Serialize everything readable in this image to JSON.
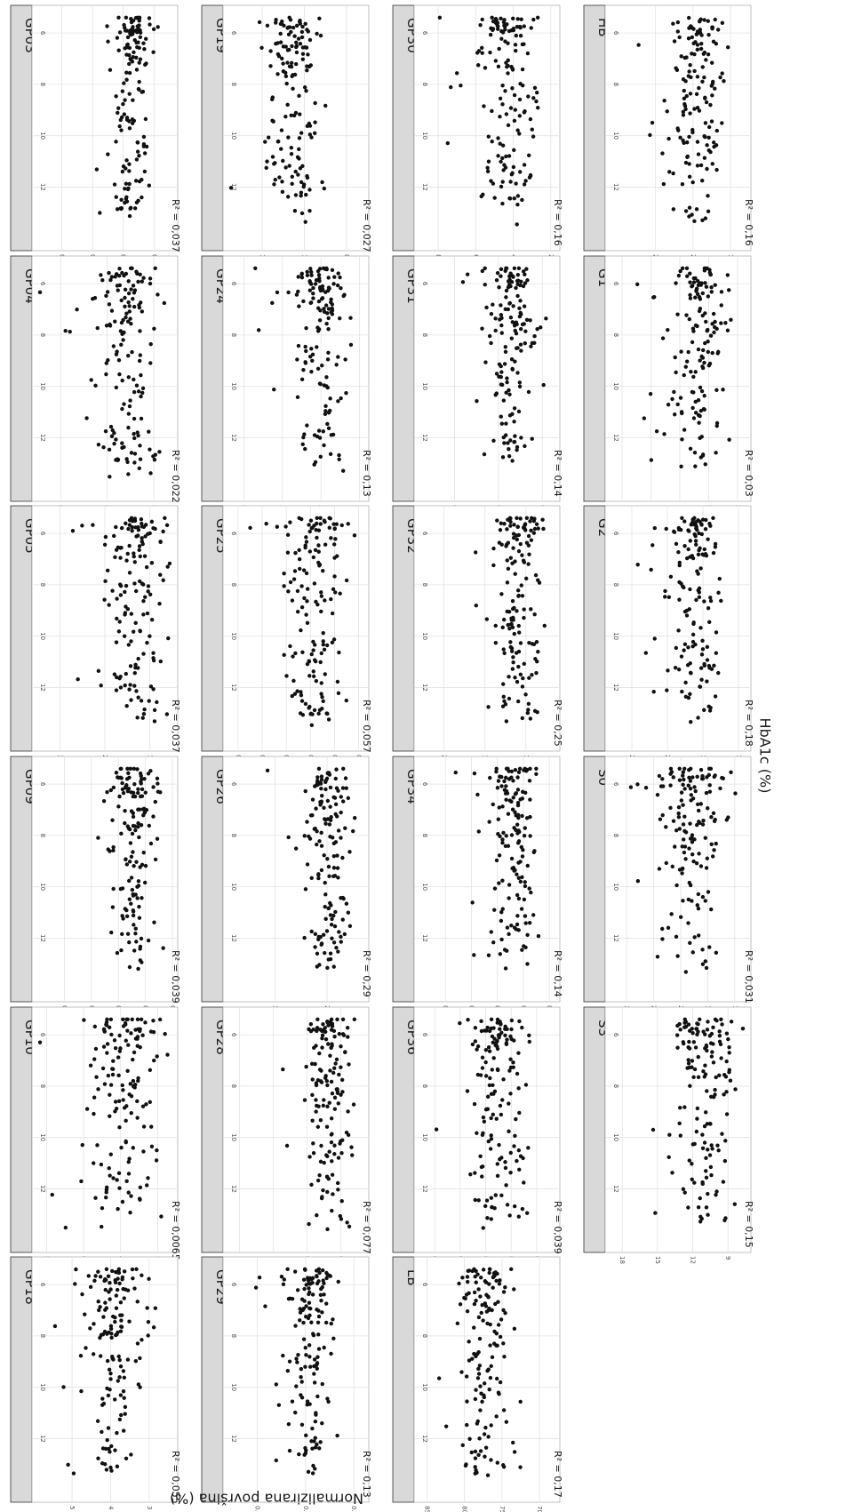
{
  "figure": {
    "xlabel": "HbA1c (%)",
    "ylabel": "Normalizirana površina (%)"
  },
  "chart_data": {
    "type": "scatter",
    "x_ticks": [
      "6",
      "8",
      "10",
      "12"
    ],
    "xlim": [
      5.2,
      14.2
    ],
    "panels": [
      {
        "title": "GP03",
        "r2": "R² = 0,037",
        "y_ticks": [
          "0.05",
          "0.10",
          "0.15",
          "0.20"
        ],
        "ylim": [
          0.02,
          0.24
        ],
        "center": 0.085,
        "spread": 0.022
      },
      {
        "title": "GP04",
        "r2": "R² = 0,022",
        "y_ticks": [
          "2",
          "4",
          "6"
        ],
        "ylim": [
          1.2,
          7.0
        ],
        "center": 3.2,
        "spread": 0.9
      },
      {
        "title": "GP05",
        "r2": "R² = 0,037",
        "y_ticks": [
          "1",
          "2",
          "3"
        ],
        "ylim": [
          0.5,
          3.5
        ],
        "center": 1.3,
        "spread": 0.45
      },
      {
        "title": "GP09",
        "r2": "R² = 0,039",
        "y_ticks": [
          "0.05",
          "0.10",
          "0.15",
          "0.20",
          "0.25"
        ],
        "ylim": [
          0.05,
          0.3
        ],
        "center": 0.12,
        "spread": 0.03
      },
      {
        "title": "GP10",
        "r2": "R² = 0,0065",
        "y_ticks": [
          "2",
          "4",
          "6",
          "8"
        ],
        "ylim": [
          1.2,
          8.5
        ],
        "center": 3.8,
        "spread": 1.3
      },
      {
        "title": "GP18",
        "r2": "R² = 0,055",
        "y_ticks": [
          "3",
          "4",
          "5"
        ],
        "ylim": [
          2.4,
          5.9
        ],
        "center": 3.9,
        "spread": 0.6
      },
      {
        "title": "GP19",
        "r2": "R² = 0,027",
        "y_ticks": [
          "0.75",
          "1.00",
          "1.25"
        ],
        "ylim": [
          0.65,
          1.45
        ],
        "center": 1.07,
        "spread": 0.12
      },
      {
        "title": "GP24",
        "r2": "R² = 0,13",
        "y_ticks": [
          "1",
          "2",
          "3",
          "4"
        ],
        "ylim": [
          0.9,
          4.4
        ],
        "center": 2.0,
        "spread": 0.45
      },
      {
        "title": "GP25",
        "r2": "R² = 0,057",
        "y_ticks": [
          "0.15",
          "0.20",
          "0.25",
          "0.30",
          "0.35",
          "0.40"
        ],
        "ylim": [
          0.14,
          0.42
        ],
        "center": 0.24,
        "spread": 0.045
      },
      {
        "title": "GP26",
        "r2": "R² = 0,29",
        "y_ticks": [
          "2",
          "3"
        ],
        "ylim": [
          1.3,
          3.9
        ],
        "center": 2.0,
        "spread": 0.3
      },
      {
        "title": "GP28",
        "r2": "R² = 0,077",
        "y_ticks": [
          "0.6",
          "0.9",
          "1.2",
          "1.5"
        ],
        "ylim": [
          0.4,
          1.6
        ],
        "center": 0.7,
        "spread": 0.13
      },
      {
        "title": "GP29",
        "r2": "R² = 0,13",
        "y_ticks": [
          "0.1",
          "0.2",
          "0.3"
        ],
        "ylim": [
          0.08,
          0.36
        ],
        "center": 0.19,
        "spread": 0.04
      },
      {
        "title": "GP30",
        "r2": "R² = 0,16",
        "y_ticks": [
          "2",
          "4",
          "6",
          "8"
        ],
        "ylim": [
          1.8,
          9.0
        ],
        "center": 4.3,
        "spread": 1.0
      },
      {
        "title": "GP31",
        "r2": "R² = 0,14",
        "y_ticks": [
          "0.25",
          "0.50",
          "0.75"
        ],
        "ylim": [
          0.18,
          0.95
        ],
        "center": 0.42,
        "spread": 0.1
      },
      {
        "title": "GP32",
        "r2": "R² = 0,25",
        "y_ticks": [
          "1.0",
          "1.5",
          "2.0"
        ],
        "ylim": [
          0.65,
          2.3
        ],
        "center": 1.1,
        "spread": 0.2
      },
      {
        "title": "GP34",
        "r2": "R² = 0,14",
        "y_ticks": [
          "0.2",
          "0.3",
          "0.4",
          "0.5",
          "0.6"
        ],
        "ylim": [
          0.18,
          0.7
        ],
        "center": 0.34,
        "spread": 0.06
      },
      {
        "title": "GP36",
        "r2": "R² = 0,039",
        "y_ticks": [
          "0.4",
          "0.5",
          "0.6",
          "0.7",
          "0.8"
        ],
        "ylim": [
          0.33,
          0.86
        ],
        "center": 0.55,
        "spread": 0.09
      },
      {
        "title": "LB",
        "r2": "R² = 0,17",
        "y_ticks": [
          "70",
          "75",
          "80",
          "85"
        ],
        "ylim": [
          68,
          86
        ],
        "center": 77,
        "spread": 2.5
      },
      {
        "title": "HB",
        "r2": "R² = 0,16",
        "y_ticks": [
          "15",
          "20",
          "25"
        ],
        "ylim": [
          13,
          31
        ],
        "center": 19.5,
        "spread": 2.8
      },
      {
        "title": "G1",
        "r2": "R² = 0,03",
        "y_ticks": [
          "2.5",
          "5.0",
          "7.5",
          "10.0",
          "12.5"
        ],
        "ylim": [
          1.8,
          13.5
        ],
        "center": 5.8,
        "spread": 1.8
      },
      {
        "title": "G2",
        "r2": "R² = 0,18",
        "y_ticks": [
          "10",
          "15",
          "20",
          "25"
        ],
        "ylim": [
          9,
          28
        ],
        "center": 16,
        "spread": 2.5
      },
      {
        "title": "S0",
        "r2": "R² = 0,031",
        "y_ticks": [
          "10",
          "15",
          "20",
          "25",
          "30"
        ],
        "ylim": [
          8,
          33
        ],
        "center": 18,
        "spread": 4.5
      },
      {
        "title": "S3",
        "r2": "R² = 0,15",
        "y_ticks": [
          "9",
          "12",
          "15",
          "18"
        ],
        "ylim": [
          7.5,
          19
        ],
        "center": 11,
        "spread": 1.8
      }
    ]
  }
}
